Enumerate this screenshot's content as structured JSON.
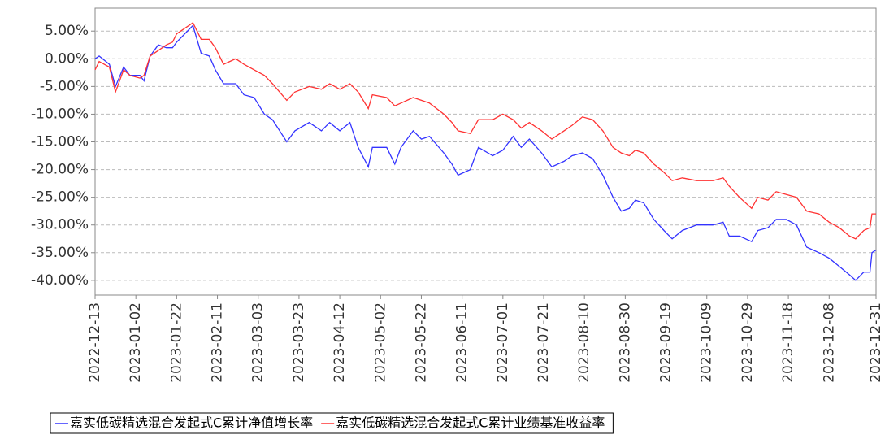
{
  "chart_data": {
    "type": "line",
    "x": [
      "2022-12-13",
      "2022-12-15",
      "2022-12-20",
      "2022-12-23",
      "2022-12-27",
      "2022-12-30",
      "2023-01-04",
      "2023-01-06",
      "2023-01-09",
      "2023-01-13",
      "2023-01-17",
      "2023-01-20",
      "2023-01-22",
      "2023-01-30",
      "2023-02-03",
      "2023-02-07",
      "2023-02-10",
      "2023-02-14",
      "2023-02-20",
      "2023-02-24",
      "2023-03-01",
      "2023-03-06",
      "2023-03-10",
      "2023-03-17",
      "2023-03-21",
      "2023-03-28",
      "2023-04-03",
      "2023-04-07",
      "2023-04-12",
      "2023-04-17",
      "2023-04-21",
      "2023-04-26",
      "2023-04-28",
      "2023-05-05",
      "2023-05-09",
      "2023-05-12",
      "2023-05-18",
      "2023-05-22",
      "2023-05-26",
      "2023-06-02",
      "2023-06-06",
      "2023-06-09",
      "2023-06-15",
      "2023-06-19",
      "2023-06-26",
      "2023-07-01",
      "2023-07-06",
      "2023-07-10",
      "2023-07-14",
      "2023-07-20",
      "2023-07-25",
      "2023-07-31",
      "2023-08-04",
      "2023-08-09",
      "2023-08-14",
      "2023-08-19",
      "2023-08-24",
      "2023-08-28",
      "2023-09-01",
      "2023-09-04",
      "2023-09-08",
      "2023-09-13",
      "2023-09-18",
      "2023-09-22",
      "2023-09-27",
      "2023-10-04",
      "2023-10-12",
      "2023-10-17",
      "2023-10-20",
      "2023-10-25",
      "2023-10-31",
      "2023-11-03",
      "2023-11-08",
      "2023-11-12",
      "2023-11-17",
      "2023-11-22",
      "2023-11-27",
      "2023-12-03",
      "2023-12-08",
      "2023-12-13",
      "2023-12-18",
      "2023-12-21",
      "2023-12-25",
      "2023-12-28",
      "2023-12-29",
      "2023-12-31"
    ],
    "series": [
      {
        "name": "嘉实低碳精选混合发起式C累计净值增长率",
        "color": "#3333ff",
        "values": [
          0,
          0.5,
          -1,
          -5,
          -1.5,
          -3,
          -3,
          -4,
          0.5,
          2.5,
          2,
          2,
          3,
          6,
          1,
          0.5,
          -2,
          -4.5,
          -4.5,
          -6.5,
          -7,
          -10,
          -11,
          -15,
          -13,
          -11.5,
          -13,
          -11.5,
          -13,
          -11.5,
          -16,
          -19.5,
          -16,
          -16,
          -19,
          -16,
          -13,
          -14.5,
          -14,
          -17,
          -19,
          -21,
          -20,
          -16,
          -17.5,
          -16.5,
          -14,
          -16,
          -14.5,
          -17,
          -19.5,
          -18.5,
          -17.5,
          -17,
          -18,
          -21,
          -25,
          -27.5,
          -27,
          -25.5,
          -26,
          -29,
          -31,
          -32.5,
          -31,
          -30,
          -30,
          -29.5,
          -32,
          -32,
          -33,
          -31,
          -30.5,
          -29,
          -29,
          -30,
          -34,
          -35,
          -36,
          -37.5,
          -39,
          -40,
          -38.5,
          -38.5,
          -35,
          -34.5
        ]
      },
      {
        "name": "嘉实低碳精选混合发起式C累计业绩基准收益率",
        "color": "#ff3333",
        "values": [
          -2,
          -0.5,
          -1.5,
          -6,
          -2,
          -3,
          -3.5,
          -3,
          0.5,
          1.5,
          2.5,
          3,
          4.5,
          6.5,
          3.5,
          3.5,
          2,
          -1,
          0,
          -1,
          -2,
          -3,
          -4.5,
          -7.5,
          -6,
          -5,
          -5.5,
          -4.5,
          -5.5,
          -4.5,
          -6,
          -9,
          -6.5,
          -7,
          -8.5,
          -8,
          -7,
          -7.5,
          -8,
          -10,
          -11.5,
          -13,
          -13.5,
          -11,
          -11,
          -10,
          -11,
          -12.5,
          -11.5,
          -13,
          -14.5,
          -13,
          -12,
          -10.5,
          -11,
          -13,
          -16,
          -17,
          -17.5,
          -16.5,
          -17,
          -19,
          -20.5,
          -22,
          -21.5,
          -22,
          -22,
          -21.5,
          -23,
          -25,
          -27,
          -25,
          -25.5,
          -24,
          -24.5,
          -25,
          -27.5,
          -28,
          -29.5,
          -30.5,
          -32,
          -32.5,
          -31,
          -30.5,
          -28,
          -28
        ]
      }
    ],
    "xlim": [
      "2022-12-13",
      "2023-12-31"
    ],
    "xticks": [
      "2022-12-13",
      "2023-01-02",
      "2023-01-22",
      "2023-02-11",
      "2023-03-03",
      "2023-03-23",
      "2023-04-12",
      "2023-05-02",
      "2023-05-22",
      "2023-06-11",
      "2023-07-01",
      "2023-07-21",
      "2023-08-10",
      "2023-08-30",
      "2023-09-19",
      "2023-10-09",
      "2023-10-29",
      "2023-11-18",
      "2023-12-08",
      "2023-12-31"
    ],
    "ylim": [
      -42.66,
      9.14
    ],
    "yticks": [
      {
        "value": 5,
        "label": "5.00%"
      },
      {
        "value": 0,
        "label": "0.00%"
      },
      {
        "value": -5,
        "label": "-5.00%"
      },
      {
        "value": -10,
        "label": "-10.00%"
      },
      {
        "value": -15,
        "label": "-15.00%"
      },
      {
        "value": -20,
        "label": "-20.00%"
      },
      {
        "value": -25,
        "label": "-25.00%"
      },
      {
        "value": -30,
        "label": "-30.00%"
      },
      {
        "value": -35,
        "label": "-35.00%"
      },
      {
        "value": -40,
        "label": "-40.00%"
      }
    ],
    "grid": true,
    "legend": "bottom"
  }
}
